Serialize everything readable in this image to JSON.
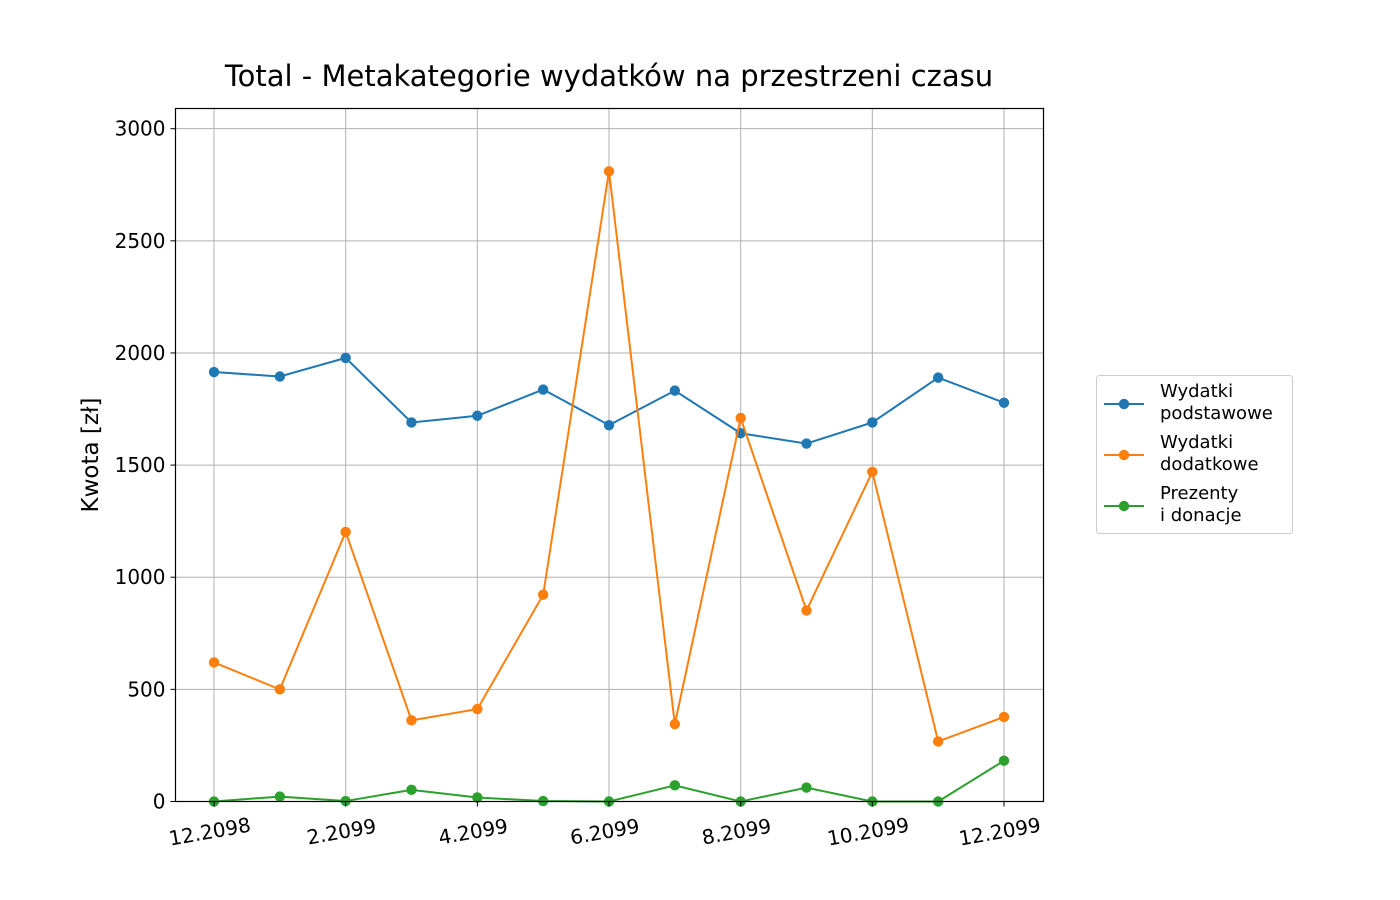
{
  "chart_data": {
    "type": "line",
    "title": "Total - Metakategorie wydatków na przestrzeni czasu",
    "xlabel": "",
    "ylabel": "Kwota [zł]",
    "x": [
      "12.2098",
      "1.2099",
      "2.2099",
      "3.2099",
      "4.2099",
      "5.2099",
      "6.2099",
      "7.2099",
      "8.2099",
      "9.2099",
      "10.2099",
      "11.2099",
      "12.2099"
    ],
    "xtick_labels": [
      "12.2098",
      "2.2099",
      "4.2099",
      "6.2099",
      "8.2099",
      "10.2099",
      "12.2099"
    ],
    "xtick_index": [
      0,
      2,
      4,
      6,
      8,
      10,
      12
    ],
    "ylim": [
      0,
      3090
    ],
    "yticks": [
      0,
      500,
      1000,
      1500,
      2000,
      2500,
      3000
    ],
    "grid": true,
    "legend_position": "right",
    "series": [
      {
        "name": "Wydatki\npodstawowe",
        "color": "#1f77b4",
        "values": [
          1915,
          1895,
          1978,
          1690,
          1720,
          1837,
          1678,
          1832,
          1642,
          1596,
          1690,
          1890,
          1778
        ]
      },
      {
        "name": "Wydatki\ndodatkowe",
        "color": "#ff7f0e",
        "values": [
          620,
          500,
          1202,
          362,
          412,
          922,
          2810,
          345,
          1710,
          852,
          1470,
          268,
          377
        ]
      },
      {
        "name": "Prezenty\ni donacje",
        "color": "#2ca02c",
        "values": [
          0,
          22,
          2,
          52,
          18,
          2,
          0,
          72,
          0,
          62,
          0,
          0,
          182
        ]
      }
    ]
  }
}
